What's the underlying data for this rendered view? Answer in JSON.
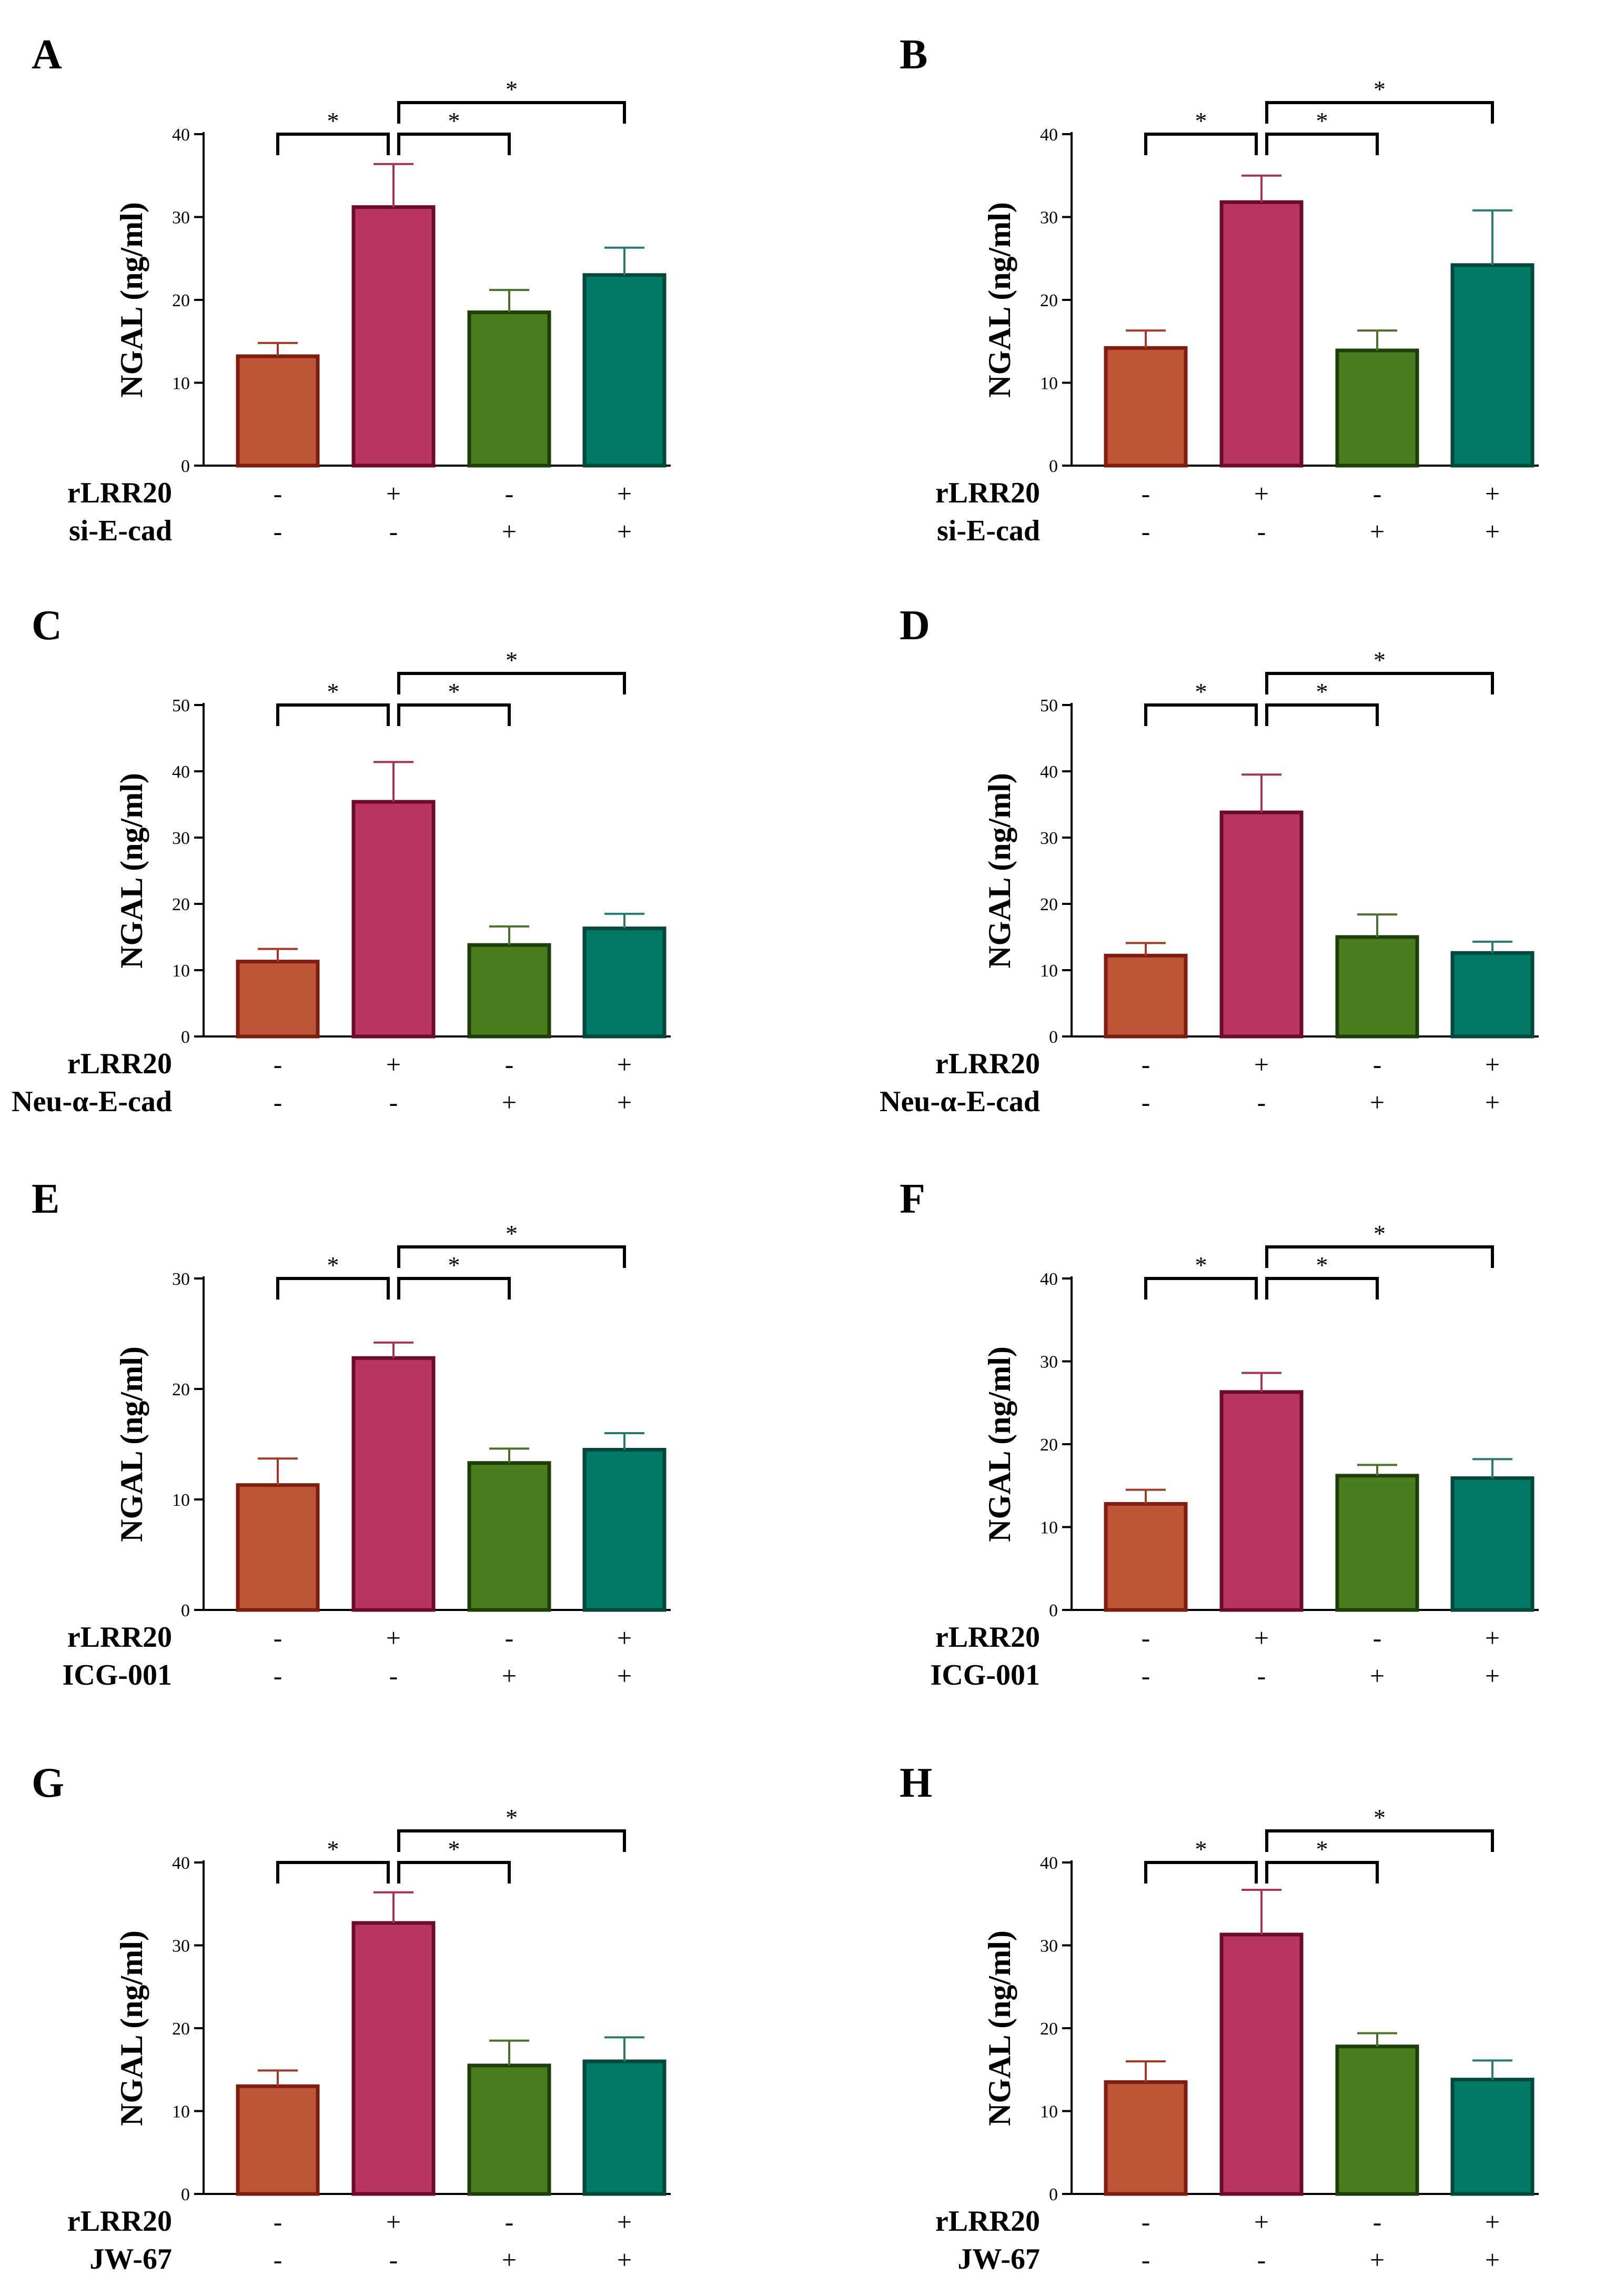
{
  "chart_data": [
    {
      "panel": "A",
      "type": "bar",
      "ylabel": "NGAL (ng/ml)",
      "ylim": [
        0,
        40
      ],
      "yticks": [
        "0",
        "10",
        "20",
        "30",
        "40"
      ],
      "values": [
        13.2,
        31.2,
        18.5,
        23.0
      ],
      "errors": [
        1.6,
        5.2,
        2.7,
        3.3
      ],
      "conditions": [
        {
          "label": "rLRR20",
          "signs": [
            "-",
            "+",
            "-",
            "+"
          ]
        },
        {
          "label": "si-E-cad",
          "signs": [
            "-",
            "-",
            "+",
            "+"
          ]
        }
      ],
      "significance": [
        {
          "from": 0,
          "to": 1,
          "label": "*"
        },
        {
          "from": 1,
          "to": 2,
          "label": "*"
        },
        {
          "from": 1,
          "to": 3,
          "label": "*"
        }
      ]
    },
    {
      "panel": "B",
      "type": "bar",
      "ylabel": "NGAL (ng/ml)",
      "ylim": [
        0,
        40
      ],
      "yticks": [
        "0",
        "10",
        "20",
        "30",
        "40"
      ],
      "values": [
        14.2,
        31.8,
        13.9,
        24.2
      ],
      "errors": [
        2.1,
        3.2,
        2.4,
        6.6
      ],
      "conditions": [
        {
          "label": "rLRR20",
          "signs": [
            "-",
            "+",
            "-",
            "+"
          ]
        },
        {
          "label": "si-E-cad",
          "signs": [
            "-",
            "-",
            "+",
            "+"
          ]
        }
      ],
      "significance": [
        {
          "from": 0,
          "to": 1,
          "label": "*"
        },
        {
          "from": 1,
          "to": 2,
          "label": "*"
        },
        {
          "from": 1,
          "to": 3,
          "label": "*"
        }
      ]
    },
    {
      "panel": "C",
      "type": "bar",
      "ylabel": "NGAL (ng/ml)",
      "ylim": [
        0,
        50
      ],
      "yticks": [
        "0",
        "10",
        "20",
        "30",
        "40",
        "50"
      ],
      "values": [
        11.3,
        35.4,
        13.8,
        16.3
      ],
      "errors": [
        1.9,
        6.0,
        2.8,
        2.2
      ],
      "conditions": [
        {
          "label": "rLRR20",
          "signs": [
            "-",
            "+",
            "-",
            "+"
          ]
        },
        {
          "label": "Neu-α-E-cad",
          "signs": [
            "-",
            "-",
            "+",
            "+"
          ]
        }
      ],
      "significance": [
        {
          "from": 0,
          "to": 1,
          "label": "*"
        },
        {
          "from": 1,
          "to": 2,
          "label": "*"
        },
        {
          "from": 1,
          "to": 3,
          "label": "*"
        }
      ]
    },
    {
      "panel": "D",
      "type": "bar",
      "ylabel": "NGAL (ng/ml)",
      "ylim": [
        0,
        50
      ],
      "yticks": [
        "0",
        "10",
        "20",
        "30",
        "40",
        "50"
      ],
      "values": [
        12.2,
        33.8,
        15.0,
        12.6
      ],
      "errors": [
        1.9,
        5.7,
        3.4,
        1.7
      ],
      "conditions": [
        {
          "label": "rLRR20",
          "signs": [
            "-",
            "+",
            "-",
            "+"
          ]
        },
        {
          "label": "Neu-α-E-cad",
          "signs": [
            "-",
            "-",
            "+",
            "+"
          ]
        }
      ],
      "significance": [
        {
          "from": 0,
          "to": 1,
          "label": "*"
        },
        {
          "from": 1,
          "to": 2,
          "label": "*"
        },
        {
          "from": 1,
          "to": 3,
          "label": "*"
        }
      ]
    },
    {
      "panel": "E",
      "type": "bar",
      "ylabel": "NGAL (ng/ml)",
      "ylim": [
        0,
        30
      ],
      "yticks": [
        "0",
        "10",
        "20",
        "30"
      ],
      "values": [
        11.3,
        22.8,
        13.3,
        14.5
      ],
      "errors": [
        2.4,
        1.4,
        1.3,
        1.5
      ],
      "conditions": [
        {
          "label": "rLRR20",
          "signs": [
            "-",
            "+",
            "-",
            "+"
          ]
        },
        {
          "label": "ICG-001",
          "signs": [
            "-",
            "-",
            "+",
            "+"
          ]
        }
      ],
      "significance": [
        {
          "from": 0,
          "to": 1,
          "label": "*"
        },
        {
          "from": 1,
          "to": 2,
          "label": "*"
        },
        {
          "from": 1,
          "to": 3,
          "label": "*"
        }
      ]
    },
    {
      "panel": "F",
      "type": "bar",
      "ylabel": "NGAL (ng/ml)",
      "ylim": [
        0,
        40
      ],
      "yticks": [
        "0",
        "10",
        "20",
        "30",
        "40"
      ],
      "values": [
        12.8,
        26.3,
        16.2,
        15.9
      ],
      "errors": [
        1.7,
        2.3,
        1.3,
        2.3
      ],
      "conditions": [
        {
          "label": "rLRR20",
          "signs": [
            "-",
            "+",
            "-",
            "+"
          ]
        },
        {
          "label": "ICG-001",
          "signs": [
            "-",
            "-",
            "+",
            "+"
          ]
        }
      ],
      "significance": [
        {
          "from": 0,
          "to": 1,
          "label": "*"
        },
        {
          "from": 1,
          "to": 2,
          "label": "*"
        },
        {
          "from": 1,
          "to": 3,
          "label": "*"
        }
      ]
    },
    {
      "panel": "G",
      "type": "bar",
      "ylabel": "NGAL (ng/ml)",
      "ylim": [
        0,
        40
      ],
      "yticks": [
        "0",
        "10",
        "20",
        "30",
        "40"
      ],
      "values": [
        13.0,
        32.7,
        15.5,
        16.0
      ],
      "errors": [
        1.9,
        3.7,
        3.0,
        2.9
      ],
      "conditions": [
        {
          "label": "rLRR20",
          "signs": [
            "-",
            "+",
            "-",
            "+"
          ]
        },
        {
          "label": "JW-67",
          "signs": [
            "-",
            "-",
            "+",
            "+"
          ]
        }
      ],
      "significance": [
        {
          "from": 0,
          "to": 1,
          "label": "*"
        },
        {
          "from": 1,
          "to": 2,
          "label": "*"
        },
        {
          "from": 1,
          "to": 3,
          "label": "*"
        }
      ]
    },
    {
      "panel": "H",
      "type": "bar",
      "ylabel": "NGAL (ng/ml)",
      "ylim": [
        0,
        40
      ],
      "yticks": [
        "0",
        "10",
        "20",
        "30",
        "40"
      ],
      "values": [
        13.5,
        31.3,
        17.8,
        13.8
      ],
      "errors": [
        2.5,
        5.4,
        1.6,
        2.3
      ],
      "conditions": [
        {
          "label": "rLRR20",
          "signs": [
            "-",
            "+",
            "-",
            "+"
          ]
        },
        {
          "label": "JW-67",
          "signs": [
            "-",
            "-",
            "+",
            "+"
          ]
        }
      ],
      "significance": [
        {
          "from": 0,
          "to": 1,
          "label": "*"
        },
        {
          "from": 1,
          "to": 2,
          "label": "*"
        },
        {
          "from": 1,
          "to": 3,
          "label": "*"
        }
      ]
    }
  ],
  "colors": {
    "bar_fills": [
      "#bf5537",
      "#b8355f",
      "#4b7d1f",
      "#007a66"
    ],
    "bar_strokes": [
      "#7e1e12",
      "#6c0c2c",
      "#1e3f0a",
      "#04473b"
    ],
    "error_colors": [
      "#9e3c2a",
      "#a23454",
      "#4d6f2f",
      "#2a7b6d"
    ],
    "axis": "#000000"
  }
}
